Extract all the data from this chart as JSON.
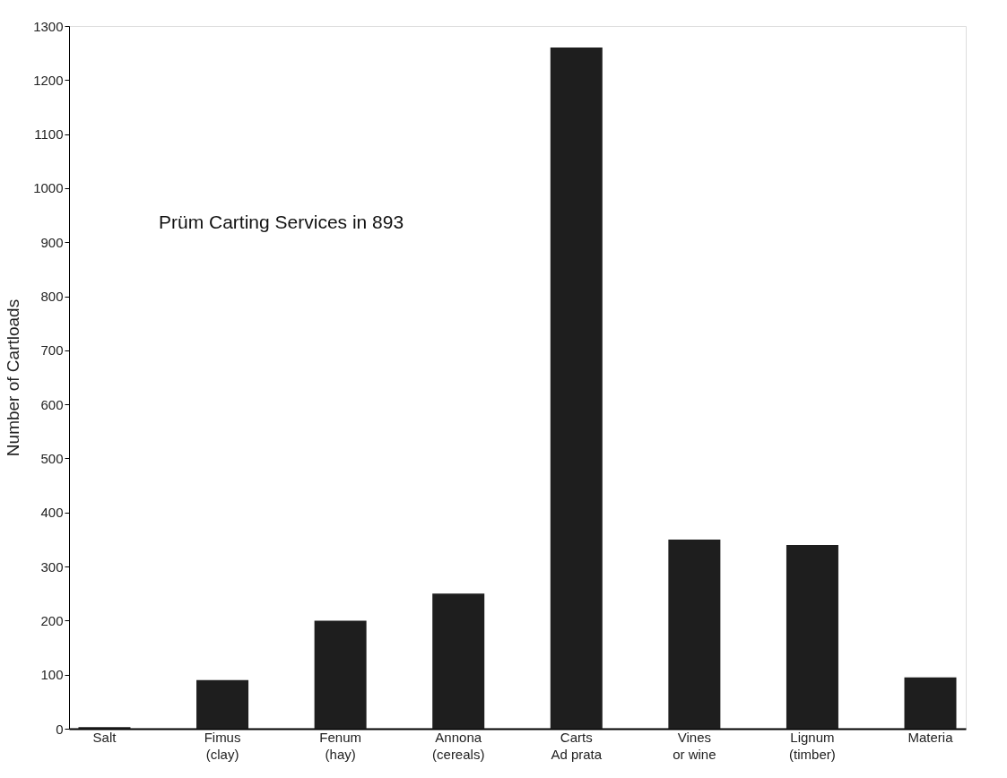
{
  "chart_data": {
    "type": "bar",
    "ylabel": "Number of Cartloads",
    "annotations": [
      "Prüm Carting Services in 893"
    ],
    "categories": [
      "Salt",
      "Fimus\n(clay)",
      "Fenum\n(hay)",
      "Annona\n(cereals)",
      "Carts\nAd prata",
      "Vines\nor wine",
      "Lignum\n(timber)",
      "Materia"
    ],
    "values": [
      3,
      90,
      200,
      250,
      1260,
      350,
      340,
      95
    ],
    "color": "#1e1e1e",
    "ylim": [
      0,
      1300
    ],
    "yticks": [
      0,
      100,
      200,
      300,
      400,
      500,
      600,
      700,
      800,
      900,
      1000,
      1100,
      1200,
      1300
    ],
    "grid": false
  }
}
